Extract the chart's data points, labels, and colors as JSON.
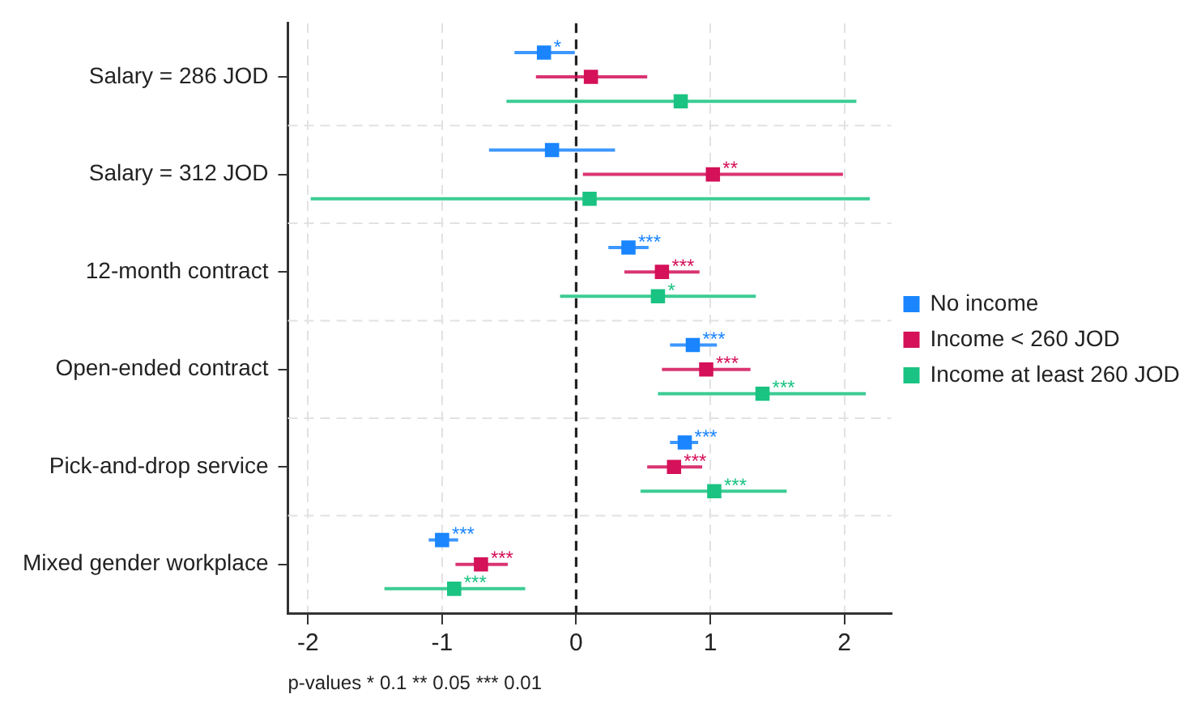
{
  "chart_data": {
    "type": "scatter",
    "orientation": "horizontal",
    "categories": [
      "Salary = 286 JOD",
      "Salary = 312 JOD",
      "12-month contract",
      "Open-ended contract",
      "Pick-and-drop service",
      "Mixed gender workplace"
    ],
    "series": [
      {
        "name": "No income",
        "color": "#1a85ff",
        "values": [
          -0.24,
          -0.18,
          0.39,
          0.87,
          0.81,
          -1.0
        ],
        "errors": [
          [
            -0.46,
            -0.01
          ],
          [
            -0.65,
            0.29
          ],
          [
            0.24,
            0.54
          ],
          [
            0.7,
            1.05
          ],
          [
            0.7,
            0.91
          ],
          [
            -1.1,
            -0.88
          ]
        ],
        "value_labels": [
          "*",
          null,
          "***",
          "***",
          "***",
          "***"
        ]
      },
      {
        "name": "Income < 260 JOD",
        "color": "#d41159",
        "values": [
          0.11,
          1.02,
          0.64,
          0.97,
          0.73,
          -0.71
        ],
        "errors": [
          [
            -0.3,
            0.53
          ],
          [
            0.05,
            1.99
          ],
          [
            0.36,
            0.92
          ],
          [
            0.64,
            1.3
          ],
          [
            0.53,
            0.94
          ],
          [
            -0.9,
            -0.51
          ]
        ],
        "value_labels": [
          null,
          "**",
          "***",
          "***",
          "***",
          "***"
        ]
      },
      {
        "name": "Income at least 260 JOD",
        "color": "#1ac381",
        "values": [
          0.78,
          0.1,
          0.61,
          1.39,
          1.03,
          -0.91
        ],
        "errors": [
          [
            -0.52,
            2.09
          ],
          [
            -1.98,
            2.19
          ],
          [
            -0.12,
            1.34
          ],
          [
            0.61,
            2.16
          ],
          [
            0.48,
            1.57
          ],
          [
            -1.43,
            -0.38
          ]
        ],
        "value_labels": [
          null,
          null,
          "*",
          "***",
          "***",
          "***"
        ]
      }
    ],
    "xlim": [
      -2.15,
      2.35
    ],
    "xticks": [
      -2,
      -1,
      0,
      1,
      2
    ],
    "ref_lines": [
      {
        "axis": "x",
        "value": 0,
        "color": "#222222",
        "line_style": "dashed"
      }
    ],
    "annotations": [
      "p-values * 0.1 ** 0.05 *** 0.01"
    ],
    "grid": true,
    "legend": "right",
    "marker": "square"
  }
}
